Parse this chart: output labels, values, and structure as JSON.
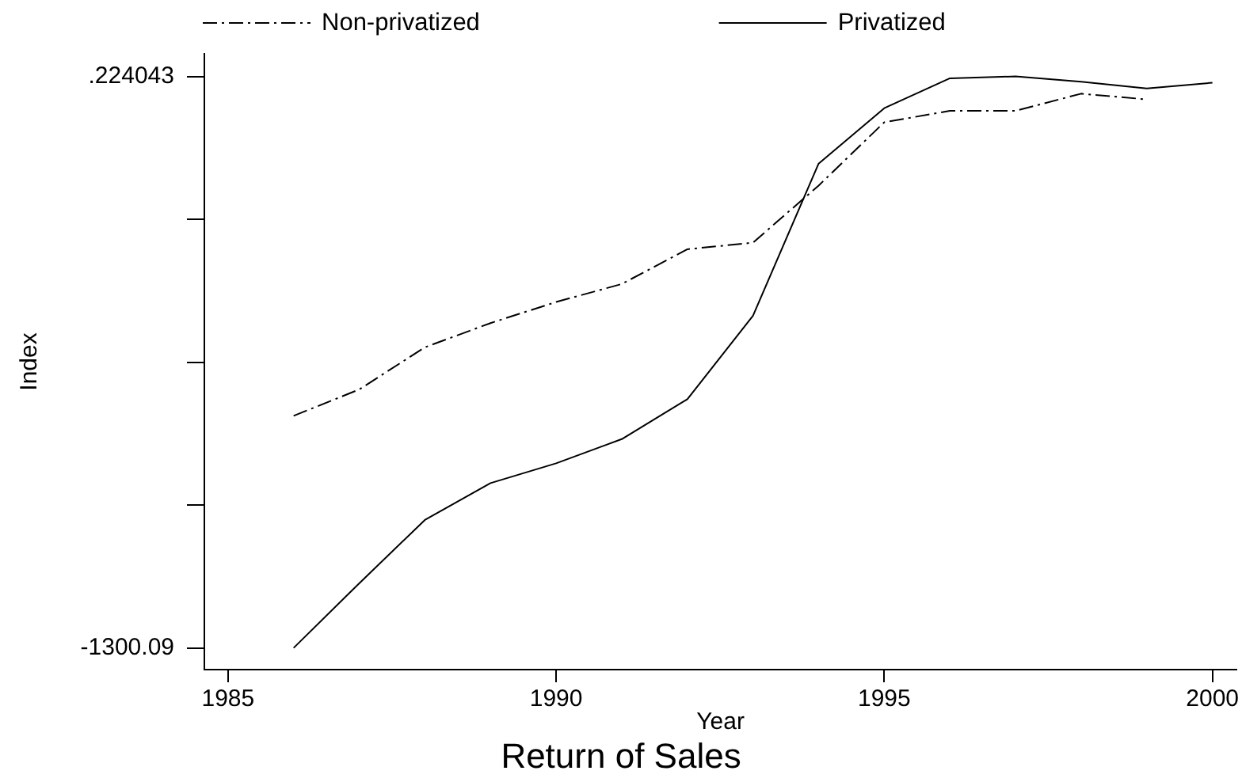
{
  "chart_data": {
    "type": "line",
    "title": "Return of Sales",
    "xlabel": "Year",
    "ylabel": "Index",
    "x": [
      1986,
      1987,
      1988,
      1989,
      1990,
      1991,
      1992,
      1993,
      1994,
      1995,
      1996,
      1997,
      1998,
      1999,
      2000
    ],
    "series": [
      {
        "name": "Non-privatized",
        "color": "#000000",
        "line_style": "dashed",
        "values": [
          -772,
          -712,
          -616,
          -561,
          -513,
          -472,
          -393,
          -378,
          -248,
          -104,
          -78,
          -78,
          -39,
          -52,
          null
        ]
      },
      {
        "name": "Privatized",
        "color": "#000000",
        "line_style": "solid",
        "values": [
          -1300.09,
          -1153,
          -1009,
          -925,
          -880,
          -825,
          -734,
          -544,
          -198,
          -72,
          -4,
          0.224043,
          -12,
          -27,
          -14
        ]
      }
    ],
    "xlim": [
      1984.64,
      2000.37
    ],
    "ylim": [
      -1349.4,
      51.7
    ],
    "xticks": [
      1985,
      1990,
      1995,
      2000
    ],
    "yticks": [
      -1300.09,
      {
        "value": -975.011,
        "label": null
      },
      {
        "value": -649.933,
        "label": null
      },
      {
        "value": -324.854,
        "label": null
      },
      {
        "value": 0.224043,
        "label": ".224043"
      }
    ],
    "legend": "top",
    "grid": false,
    "marker": "none"
  }
}
